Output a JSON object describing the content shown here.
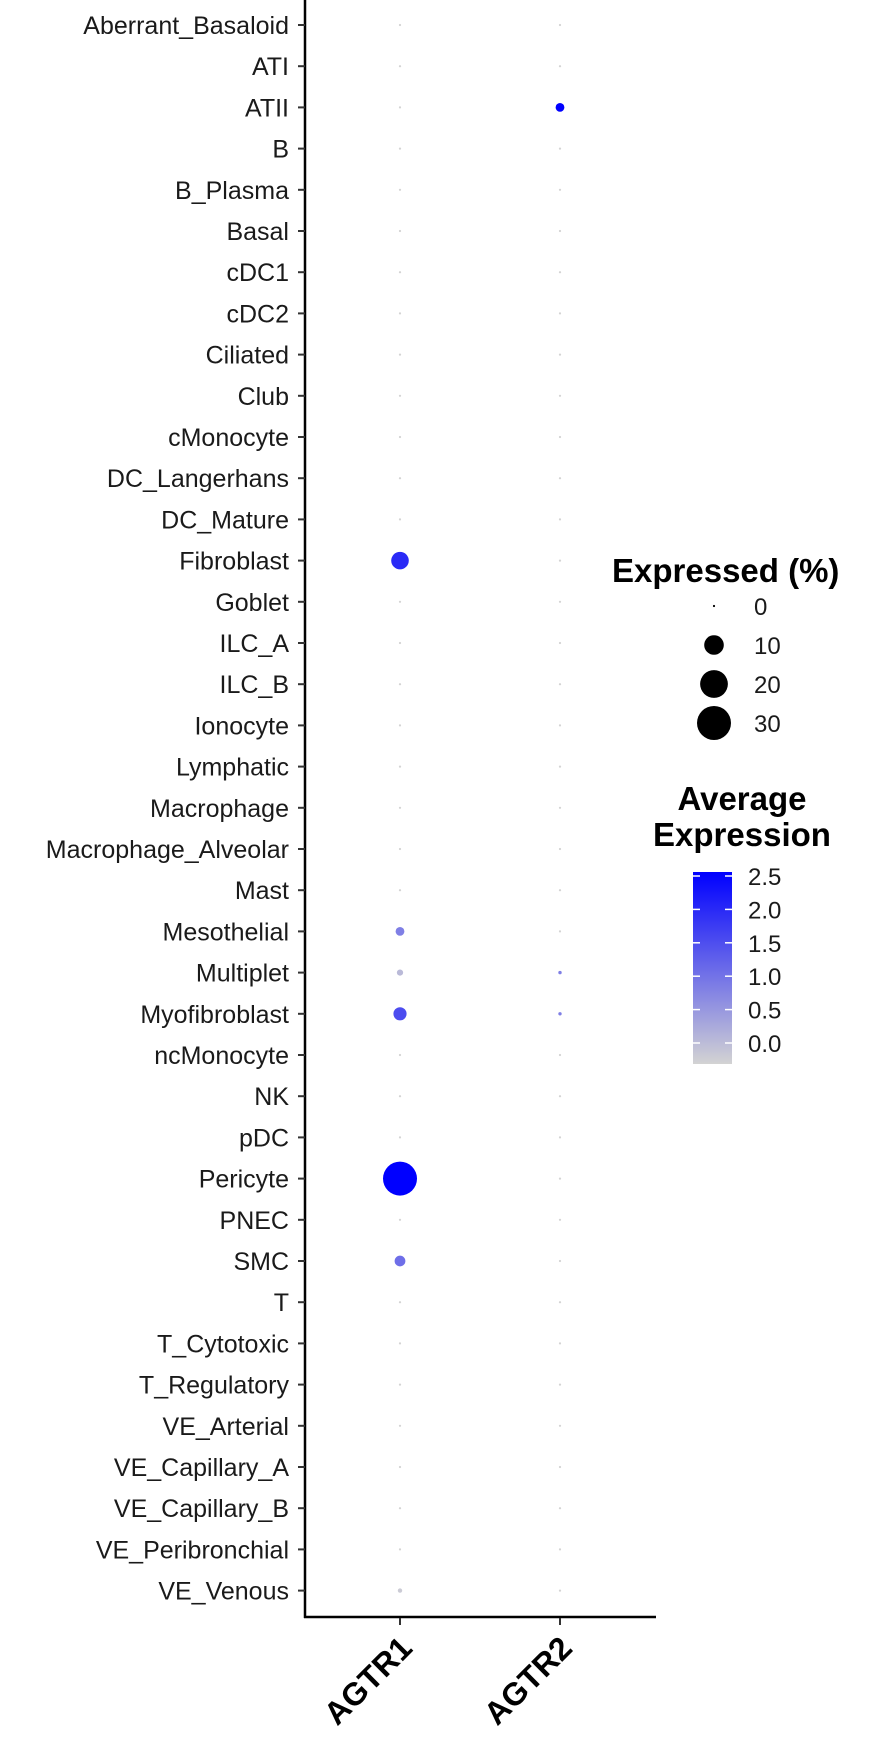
{
  "chart_data": {
    "type": "scatter",
    "x": [
      "AGTR1",
      "AGTR2"
    ],
    "y": [
      "Aberrant_Basaloid",
      "ATI",
      "ATII",
      "B",
      "B_Plasma",
      "Basal",
      "cDC1",
      "cDC2",
      "Ciliated",
      "Club",
      "cMonocyte",
      "DC_Langerhans",
      "DC_Mature",
      "Fibroblast",
      "Goblet",
      "ILC_A",
      "ILC_B",
      "Ionocyte",
      "Lymphatic",
      "Macrophage",
      "Macrophage_Alveolar",
      "Mast",
      "Mesothelial",
      "Multiplet",
      "Myofibroblast",
      "ncMonocyte",
      "NK",
      "pDC",
      "Pericyte",
      "PNEC",
      "SMC",
      "T",
      "T_Cytotoxic",
      "T_Regulatory",
      "VE_Arterial",
      "VE_Capillary_A",
      "VE_Capillary_B",
      "VE_Peribronchial",
      "VE_Venous"
    ],
    "series": [
      {
        "gene": "AGTR1",
        "pct_expressed": [
          0.1,
          0.1,
          0.1,
          0.1,
          0.1,
          0.1,
          0.1,
          0.1,
          0.1,
          0.1,
          0.1,
          0.1,
          0.1,
          8,
          0.1,
          0.1,
          0.1,
          0.1,
          0.1,
          0.1,
          0.1,
          0.1,
          2,
          1,
          4.5,
          0.1,
          0.1,
          0.1,
          30,
          0.1,
          3,
          0.1,
          0.1,
          0.1,
          0.1,
          0.1,
          0.1,
          0.1,
          0.5
        ],
        "avg_expression": [
          0,
          0,
          0,
          0,
          0,
          0,
          0,
          0,
          0,
          0,
          0,
          0,
          0,
          2.0,
          0,
          0,
          0,
          0,
          0,
          0,
          0,
          0,
          1.0,
          0.3,
          1.6,
          0,
          0,
          0,
          2.5,
          0,
          1.2,
          0,
          0,
          0,
          0,
          0,
          0,
          0,
          0.1
        ]
      },
      {
        "gene": "AGTR2",
        "pct_expressed": [
          0.1,
          0.1,
          2,
          0.1,
          0.1,
          0.1,
          0.1,
          0.1,
          0.1,
          0.1,
          0.1,
          0.1,
          0.1,
          0.1,
          0.1,
          0.1,
          0.1,
          0.1,
          0.1,
          0.1,
          0.1,
          0.1,
          0.1,
          0.3,
          0.3,
          0.1,
          0.1,
          0.1,
          0.1,
          0.1,
          0.1,
          0.1,
          0.1,
          0.1,
          0.1,
          0.1,
          0.1,
          0.1,
          0.1
        ],
        "avg_expression": [
          0,
          0,
          2.5,
          0,
          0,
          0,
          0,
          0,
          0,
          0,
          0,
          0,
          0,
          0,
          0,
          0,
          0,
          0,
          0,
          0,
          0,
          0,
          0,
          1.0,
          1.0,
          0,
          0,
          0,
          0,
          0,
          0,
          0,
          0,
          0,
          0,
          0,
          0,
          0,
          0
        ]
      }
    ],
    "size_legend": {
      "title": "Expressed (%)",
      "breaks": [
        0,
        10,
        20,
        30
      ],
      "labels": [
        "0",
        "10",
        "20",
        "30"
      ]
    },
    "color_legend": {
      "title_lines": [
        "Average",
        "Expression"
      ],
      "breaks": [
        0.0,
        0.5,
        1.0,
        1.5,
        2.0,
        2.5
      ],
      "labels": [
        "0.0",
        "0.5",
        "1.0",
        "1.5",
        "2.0",
        "2.5"
      ],
      "low_color": "#d3d3d3",
      "high_color": "#0000ff",
      "range": [
        0,
        2.5
      ]
    },
    "size_range_pct": [
      0,
      30
    ],
    "grid": false
  }
}
